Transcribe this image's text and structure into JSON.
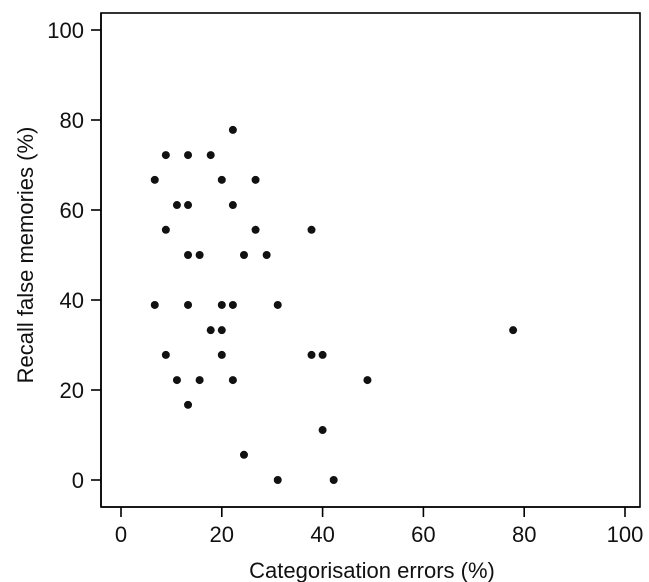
{
  "chart_data": {
    "type": "scatter",
    "title": "",
    "xlabel": "Categorisation errors (%)",
    "ylabel": "Recall false memories (%)",
    "xlim": [
      0,
      100
    ],
    "ylim": [
      0,
      100
    ],
    "xticks": [
      0,
      20,
      40,
      60,
      80,
      100
    ],
    "yticks": [
      0,
      20,
      40,
      60,
      80,
      100
    ],
    "grid": false,
    "legend": "none",
    "point_color": "#111111",
    "series": [
      {
        "points": [
          [
            22.2,
            77.8
          ],
          [
            8.9,
            72.2
          ],
          [
            13.3,
            72.2
          ],
          [
            17.8,
            72.2
          ],
          [
            6.7,
            66.7
          ],
          [
            20.0,
            66.7
          ],
          [
            26.7,
            66.7
          ],
          [
            11.1,
            61.1
          ],
          [
            13.3,
            61.1
          ],
          [
            22.2,
            61.1
          ],
          [
            8.9,
            55.6
          ],
          [
            26.7,
            55.6
          ],
          [
            37.8,
            55.6
          ],
          [
            13.3,
            50.0
          ],
          [
            15.6,
            50.0
          ],
          [
            24.4,
            50.0
          ],
          [
            28.9,
            50.0
          ],
          [
            6.7,
            38.9
          ],
          [
            13.3,
            38.9
          ],
          [
            20.0,
            38.9
          ],
          [
            22.2,
            38.9
          ],
          [
            31.1,
            38.9
          ],
          [
            17.8,
            33.3
          ],
          [
            20.0,
            33.3
          ],
          [
            77.8,
            33.3
          ],
          [
            8.9,
            27.8
          ],
          [
            20.0,
            27.8
          ],
          [
            37.8,
            27.8
          ],
          [
            40.0,
            27.8
          ],
          [
            11.1,
            22.2
          ],
          [
            15.6,
            22.2
          ],
          [
            22.2,
            22.2
          ],
          [
            48.9,
            22.2
          ],
          [
            13.3,
            16.7
          ],
          [
            40.0,
            11.1
          ],
          [
            24.4,
            5.6
          ],
          [
            31.1,
            0.0
          ],
          [
            42.2,
            0.0
          ]
        ]
      }
    ]
  }
}
